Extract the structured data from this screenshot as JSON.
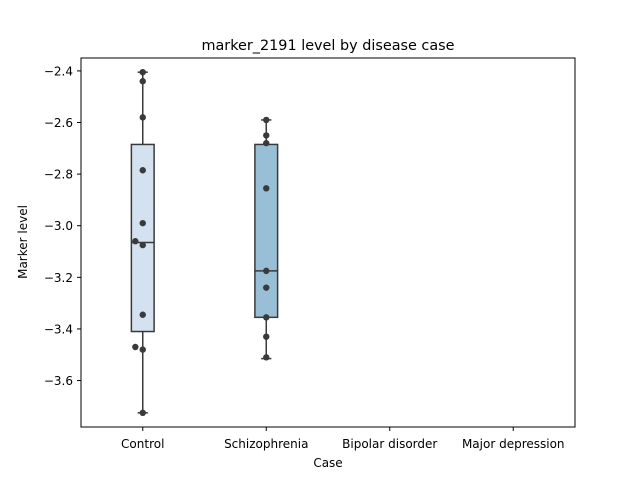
{
  "chart_data": {
    "type": "box",
    "title": "marker_2191 level by disease case",
    "xlabel": "Case",
    "ylabel": "Marker level",
    "categories": [
      "Control",
      "Schizophrenia",
      "Bipolar disorder",
      "Major depression"
    ],
    "ylim": [
      -3.78,
      -2.35
    ],
    "yticks": [
      -3.6,
      -3.4,
      -3.2,
      -3.0,
      -2.8,
      -2.6,
      -2.4
    ],
    "ytick_labels": [
      "−3.6",
      "−3.4",
      "−3.2",
      "−3.0",
      "−2.8",
      "−2.6",
      "−2.4"
    ],
    "grid": false,
    "boxes": [
      {
        "category": "Control",
        "color": "#d3e1f0",
        "whisker_low": -3.725,
        "q1": -3.41,
        "median": -3.065,
        "q3": -2.685,
        "whisker_high": -2.405
      },
      {
        "category": "Schizophrenia",
        "color": "#98bfd6",
        "whisker_low": -3.515,
        "q1": -3.355,
        "median": -3.175,
        "q3": -2.685,
        "whisker_high": -2.59
      }
    ],
    "points": [
      {
        "category": "Control",
        "y": -2.405,
        "jitter": 0.0
      },
      {
        "category": "Control",
        "y": -2.44,
        "jitter": 0.0
      },
      {
        "category": "Control",
        "y": -2.58,
        "jitter": 0.0
      },
      {
        "category": "Control",
        "y": -2.785,
        "jitter": 0.0
      },
      {
        "category": "Control",
        "y": -2.99,
        "jitter": 0.0
      },
      {
        "category": "Control",
        "y": -3.06,
        "jitter": -0.06
      },
      {
        "category": "Control",
        "y": -3.075,
        "jitter": 0.0
      },
      {
        "category": "Control",
        "y": -3.345,
        "jitter": 0.0
      },
      {
        "category": "Control",
        "y": -3.47,
        "jitter": -0.06
      },
      {
        "category": "Control",
        "y": -3.48,
        "jitter": 0.0
      },
      {
        "category": "Control",
        "y": -3.725,
        "jitter": 0.0
      },
      {
        "category": "Schizophrenia",
        "y": -2.59,
        "jitter": 0.0
      },
      {
        "category": "Schizophrenia",
        "y": -2.65,
        "jitter": 0.0
      },
      {
        "category": "Schizophrenia",
        "y": -2.68,
        "jitter": 0.0
      },
      {
        "category": "Schizophrenia",
        "y": -2.855,
        "jitter": 0.0
      },
      {
        "category": "Schizophrenia",
        "y": -3.175,
        "jitter": 0.0
      },
      {
        "category": "Schizophrenia",
        "y": -3.24,
        "jitter": 0.0
      },
      {
        "category": "Schizophrenia",
        "y": -3.355,
        "jitter": 0.0
      },
      {
        "category": "Schizophrenia",
        "y": -3.43,
        "jitter": 0.0
      },
      {
        "category": "Schizophrenia",
        "y": -3.51,
        "jitter": 0.0
      }
    ],
    "colors": {
      "box_edge": "#3a3a3a",
      "point": "#3a3a3a",
      "axis": "#000000"
    }
  }
}
